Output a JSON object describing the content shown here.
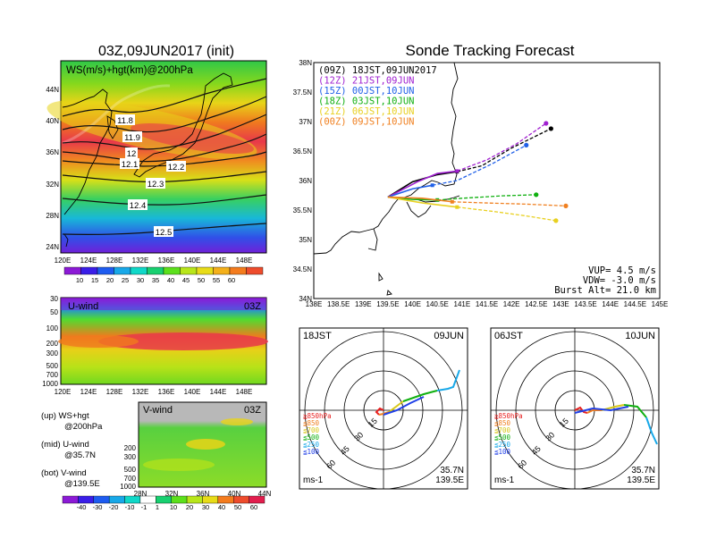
{
  "left": {
    "title": "03Z,09JUN2017 (init)",
    "map_label": "WS(m/s)+hgt(km)@200hPa",
    "lat_ticks": [
      "44N",
      "40N",
      "36N",
      "32N",
      "28N",
      "24N"
    ],
    "lon_ticks": [
      "120E",
      "124E",
      "128E",
      "132E",
      "136E",
      "140E",
      "144E",
      "148E"
    ],
    "contour_labels": [
      "11.8",
      "11.9",
      "12",
      "12.1",
      "12.2",
      "12.3",
      "12.4",
      "12.5"
    ],
    "ws_colorbar": [
      "10",
      "15",
      "20",
      "25",
      "30",
      "35",
      "40",
      "45",
      "50",
      "55",
      "60"
    ],
    "uwind": {
      "label": "U-wind",
      "time": "03Z",
      "p_ticks": [
        "30",
        "50",
        "100",
        "200",
        "300",
        "500",
        "700",
        "1000"
      ]
    },
    "vwind": {
      "label": "V-wind",
      "time": "03Z",
      "p_ticks": [
        "200",
        "300",
        "500",
        "700",
        "1000"
      ],
      "lat_ticks": [
        "28N",
        "32N",
        "36N",
        "40N",
        "44N"
      ]
    },
    "notes": [
      {
        "a": "(up) WS+hgt",
        "b": "@200hPa"
      },
      {
        "a": "(mid) U-wind",
        "b": "@35.7N"
      },
      {
        "a": "(bot) V-wind",
        "b": "@139.5E"
      }
    ],
    "uv_colorbar": [
      "-40",
      "-30",
      "-20",
      "-10",
      "-1",
      "1",
      "10",
      "20",
      "30",
      "40",
      "50",
      "60"
    ],
    "colors": [
      "#8c1ad6",
      "#3a1ee8",
      "#1e5cf0",
      "#18a8e8",
      "#10d8c8",
      "#18d070",
      "#5ce01c",
      "#b8e61a",
      "#e8dc18",
      "#f4b01a",
      "#f47c1e",
      "#ee4c2c",
      "#e21e4e"
    ]
  },
  "right": {
    "title": "Sonde Tracking Forecast",
    "legend": [
      {
        "z": "(09Z)",
        "t": "18JST,09JUN2017",
        "color": "#000000"
      },
      {
        "z": "(12Z)",
        "t": "21JST,09JUN",
        "color": "#a020d0"
      },
      {
        "z": "(15Z)",
        "t": "00JST,10JUN",
        "color": "#2060e8"
      },
      {
        "z": "(18Z)",
        "t": "03JST,10JUN",
        "color": "#10b010"
      },
      {
        "z": "(21Z)",
        "t": "06JST,10JUN",
        "color": "#e8d020"
      },
      {
        "z": "(00Z)",
        "t": "09JST,10JUN",
        "color": "#f08020"
      }
    ],
    "lat_ticks": [
      "38N",
      "37.5N",
      "37N",
      "36.5N",
      "36N",
      "35.5N",
      "35N",
      "34.5N",
      "34N"
    ],
    "lon_ticks": [
      "138E",
      "138.5E",
      "139E",
      "139.5E",
      "140E",
      "140.5E",
      "141E",
      "141.5E",
      "142E",
      "142.5E",
      "143E",
      "143.5E",
      "144E",
      "144.5E",
      "145E"
    ],
    "params": [
      "VUP= 4.5 m/s",
      "VDW= -3.0 m/s",
      "Burst Alt= 21.0 km"
    ]
  },
  "hodographs": [
    {
      "time": "18JST",
      "date": "09JUN",
      "lat": "35.7N",
      "lon": "139.5E",
      "unit": "ms-1"
    },
    {
      "time": "06JST",
      "date": "10JUN",
      "lat": "35.7N",
      "lon": "139.5E",
      "unit": "ms-1"
    }
  ],
  "hodo_legend": [
    {
      "t": "≧850hPa",
      "color": "#e82020"
    },
    {
      "t": "≦850",
      "color": "#f08020"
    },
    {
      "t": "≦700",
      "color": "#d8c818"
    },
    {
      "t": "≦500",
      "color": "#10b010"
    },
    {
      "t": "≦250",
      "color": "#18a8e8"
    },
    {
      "t": "≦100",
      "color": "#2040e8"
    }
  ],
  "hodo_ring_labels": [
    "15",
    "30",
    "45",
    "60"
  ],
  "chart_data": {
    "type": "line",
    "title": "Sonde Tracking Forecast",
    "xlim": [
      138,
      145
    ],
    "ylim": [
      34,
      38
    ],
    "series": [
      {
        "name": "(09Z) 18JST,09JUN2017",
        "color": "#000000",
        "ascent": [
          [
            139.5,
            35.72
          ],
          [
            140.0,
            35.98
          ],
          [
            140.5,
            36.1
          ],
          [
            140.9,
            36.15
          ]
        ],
        "drift": [
          [
            140.9,
            36.15
          ],
          [
            141.4,
            36.25
          ],
          [
            142.0,
            36.55
          ],
          [
            142.8,
            36.88
          ]
        ]
      },
      {
        "name": "(12Z) 21JST,09JUN",
        "color": "#a020d0",
        "ascent": [
          [
            139.5,
            35.72
          ],
          [
            140.1,
            35.98
          ],
          [
            140.5,
            36.12
          ],
          [
            140.9,
            36.16
          ]
        ],
        "drift": [
          [
            140.9,
            36.16
          ],
          [
            141.5,
            36.35
          ],
          [
            142.1,
            36.62
          ],
          [
            142.7,
            36.97
          ]
        ]
      },
      {
        "name": "(15Z) 00JST,10JUN",
        "color": "#2060e8",
        "ascent": [
          [
            139.5,
            35.72
          ],
          [
            140.0,
            35.86
          ],
          [
            140.4,
            35.92
          ]
        ],
        "drift": [
          [
            140.4,
            35.92
          ],
          [
            140.9,
            36.0
          ],
          [
            141.6,
            36.28
          ],
          [
            142.3,
            36.6
          ]
        ]
      },
      {
        "name": "(18Z) 03JST,10JUN",
        "color": "#10b010",
        "ascent": [
          [
            139.5,
            35.72
          ],
          [
            140.0,
            35.68
          ],
          [
            140.5,
            35.67
          ]
        ],
        "drift": [
          [
            140.5,
            35.67
          ],
          [
            141.0,
            35.7
          ],
          [
            141.8,
            35.74
          ],
          [
            142.5,
            35.76
          ]
        ]
      },
      {
        "name": "(21Z) 06JST,10JUN",
        "color": "#e8d020",
        "ascent": [
          [
            139.5,
            35.72
          ],
          [
            140.2,
            35.62
          ],
          [
            140.9,
            35.55
          ]
        ],
        "drift": [
          [
            140.9,
            35.55
          ],
          [
            141.6,
            35.48
          ],
          [
            142.3,
            35.4
          ],
          [
            142.9,
            35.32
          ]
        ]
      },
      {
        "name": "(00Z) 09JST,10JUN",
        "color": "#f08020",
        "ascent": [
          [
            139.5,
            35.72
          ],
          [
            140.2,
            35.7
          ],
          [
            140.8,
            35.64
          ]
        ],
        "drift": [
          [
            140.8,
            35.64
          ],
          [
            141.5,
            35.62
          ],
          [
            142.3,
            35.6
          ],
          [
            143.1,
            35.57
          ]
        ]
      }
    ]
  }
}
